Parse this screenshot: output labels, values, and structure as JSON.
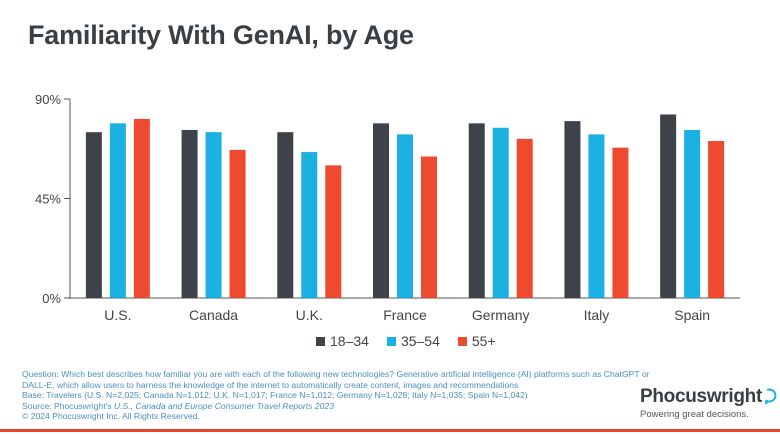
{
  "title": "Familiarity With GenAI, by Age",
  "chart_data": {
    "type": "bar",
    "categories": [
      "U.S.",
      "Canada",
      "U.K.",
      "France",
      "Germany",
      "Italy",
      "Spain"
    ],
    "series": [
      {
        "name": "18-34",
        "color": "#3d4349",
        "values": [
          75,
          76,
          75,
          79,
          79,
          80,
          83
        ]
      },
      {
        "name": "35-54",
        "color": "#1ab0e1",
        "values": [
          79,
          75,
          66,
          74,
          77,
          74,
          76
        ]
      },
      {
        "name": "55+",
        "color": "#ee4a2f",
        "values": [
          81,
          67,
          60,
          64,
          72,
          68,
          71
        ]
      }
    ],
    "yticks": [
      "0%",
      "45%",
      "90%"
    ],
    "ytick_values": [
      0,
      45,
      90
    ],
    "ylim": [
      0,
      90
    ],
    "grid": false,
    "legend_position": "bottom-center"
  },
  "legend": [
    {
      "label": "18–34",
      "color": "#3d4349"
    },
    {
      "label": "35–54",
      "color": "#1ab0e1"
    },
    {
      "label": "55+",
      "color": "#ee4a2f"
    }
  ],
  "footnote": {
    "line1": "Question: Which best describes how familiar you are with each of the following new technologies? Generative artificial intelligence (AI) platforms such as ChatGPT or",
    "line2": "DALL-E, which allow users to harness the knowledge of the internet to automatically create content, images and recommendations",
    "line3": "Base: Travelers (U.S. N=2,025; Canada N=1,012; U.K. N=1,017; France N=1,012; Germany N=1,028; Italy N=1,035; Spain N=1,042)",
    "source_prefix": "Source: Phocuswright's ",
    "source_report": "U.S., Canada and Europe Consumer Travel Reports 2023",
    "copyright": "© 2024 Phocuswright Inc. All Rights Reserved."
  },
  "logo": {
    "name": "Phocuswright",
    "tagline": "Powering great decisions."
  }
}
